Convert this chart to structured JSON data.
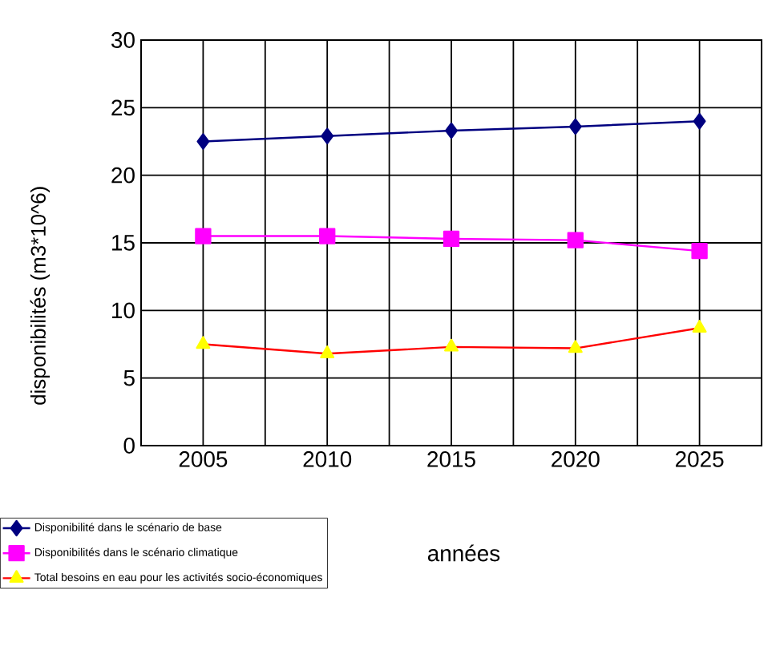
{
  "chart_data": {
    "type": "line",
    "xlabel": "années",
    "ylabel": "disponibilités  (m3*10^6)",
    "categories": [
      "2005",
      "2010",
      "2015",
      "2020",
      "2025"
    ],
    "series": [
      {
        "name": "Disponibilité dans le scénario de base",
        "color": "#000080",
        "marker": "diamond",
        "values": [
          22.5,
          22.9,
          23.3,
          23.6,
          24.0
        ]
      },
      {
        "name": "Disponibilités dans le scénario climatique",
        "color": "#ff00ff",
        "marker": "square",
        "values": [
          15.5,
          15.5,
          15.3,
          15.2,
          14.4
        ]
      },
      {
        "name": "Total besoins en eau pour les activités socio-économiques",
        "color": "#ff0000",
        "colors": [
          "#ffff00",
          "#ffff00",
          "#ffff00",
          "#ffff00",
          "#ffff00"
        ],
        "marker": "triangle",
        "values": [
          7.5,
          6.8,
          7.3,
          7.2,
          8.7
        ]
      }
    ],
    "ylim": [
      0,
      30
    ],
    "yticks": [
      0,
      5,
      10,
      15,
      20,
      25,
      30
    ],
    "grid": true,
    "legend": "bottom left",
    "line_style": "solid"
  }
}
